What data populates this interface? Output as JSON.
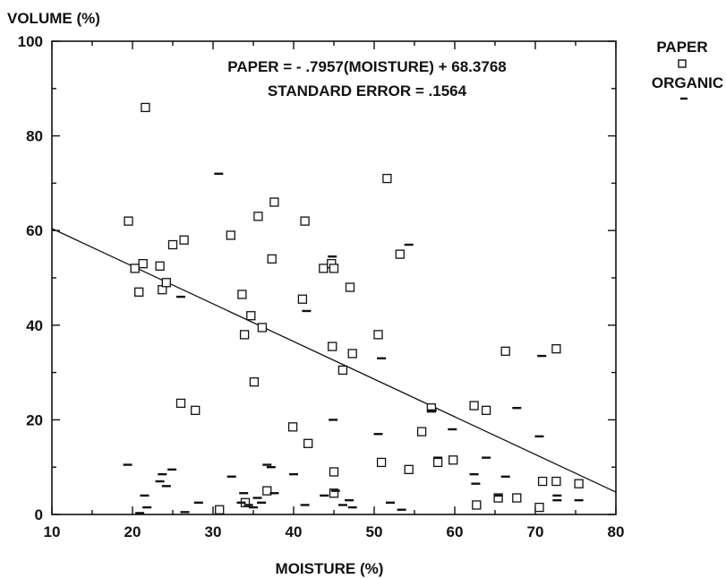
{
  "chart_data": {
    "type": "scatter",
    "ylabel": "VOLUME (%)",
    "xlabel": "MOISTURE (%)",
    "xlim": [
      10,
      80
    ],
    "ylim": [
      0,
      100
    ],
    "x_ticks": [
      "10",
      "20",
      "30",
      "40",
      "50",
      "60",
      "70",
      "80"
    ],
    "y_ticks": [
      "0",
      "20",
      "40",
      "60",
      "80",
      "100"
    ],
    "grid": false,
    "legend_placement": "right, outside plot",
    "annotations": [
      "PAPER = - .7957(MOISTURE) + 68.3768",
      "STANDARD ERROR = .1564"
    ],
    "regression_line": {
      "slope": -0.7957,
      "intercept": 68.3768
    },
    "series": [
      {
        "name": "PAPER",
        "marker": "square",
        "points": [
          [
            19.5,
            62
          ],
          [
            20.3,
            52
          ],
          [
            20.8,
            47
          ],
          [
            21.3,
            53
          ],
          [
            21.6,
            86
          ],
          [
            23.4,
            52.5
          ],
          [
            23.7,
            47.5
          ],
          [
            24.2,
            49
          ],
          [
            25.0,
            57
          ],
          [
            26.0,
            23.5
          ],
          [
            26.4,
            58
          ],
          [
            27.8,
            22
          ],
          [
            30.8,
            1
          ],
          [
            32.2,
            59
          ],
          [
            33.6,
            46.5
          ],
          [
            33.9,
            38
          ],
          [
            34.0,
            2.5
          ],
          [
            34.7,
            42
          ],
          [
            35.1,
            28
          ],
          [
            35.6,
            63
          ],
          [
            36.1,
            39.5
          ],
          [
            36.7,
            5
          ],
          [
            37.3,
            54
          ],
          [
            37.6,
            66
          ],
          [
            39.9,
            18.5
          ],
          [
            41.1,
            45.5
          ],
          [
            41.4,
            62
          ],
          [
            41.8,
            15
          ],
          [
            43.7,
            52
          ],
          [
            44.7,
            53
          ],
          [
            44.8,
            35.5
          ],
          [
            45.0,
            52
          ],
          [
            45.0,
            9
          ],
          [
            45.0,
            4.5
          ],
          [
            46.1,
            30.5
          ],
          [
            47.0,
            48
          ],
          [
            47.3,
            34
          ],
          [
            50.5,
            38
          ],
          [
            50.9,
            11
          ],
          [
            51.6,
            71
          ],
          [
            53.2,
            55
          ],
          [
            54.3,
            9.5
          ],
          [
            55.9,
            17.5
          ],
          [
            57.1,
            22.5
          ],
          [
            57.9,
            11
          ],
          [
            59.8,
            11.5
          ],
          [
            62.4,
            23
          ],
          [
            62.7,
            2
          ],
          [
            63.9,
            22
          ],
          [
            65.4,
            3.5
          ],
          [
            66.3,
            34.5
          ],
          [
            67.7,
            3.5
          ],
          [
            70.5,
            1.5
          ],
          [
            70.9,
            7
          ],
          [
            72.6,
            35
          ],
          [
            72.6,
            7
          ],
          [
            75.4,
            6.5
          ]
        ]
      },
      {
        "name": "ORGANIC",
        "marker": "dash",
        "points": [
          [
            19.4,
            10.5
          ],
          [
            20.9,
            0.3
          ],
          [
            21.5,
            4
          ],
          [
            21.8,
            1.5
          ],
          [
            23.4,
            7
          ],
          [
            23.7,
            8.5
          ],
          [
            24.2,
            6
          ],
          [
            24.9,
            9.5
          ],
          [
            26.0,
            46
          ],
          [
            26.5,
            0.5
          ],
          [
            28.2,
            2.5
          ],
          [
            30.7,
            72
          ],
          [
            32.3,
            8
          ],
          [
            33.5,
            2.5
          ],
          [
            33.8,
            4.5
          ],
          [
            34.4,
            2
          ],
          [
            35.0,
            1.5
          ],
          [
            35.5,
            3.5
          ],
          [
            36.0,
            2.5
          ],
          [
            36.7,
            10.5
          ],
          [
            37.2,
            10
          ],
          [
            37.6,
            4.5
          ],
          [
            40.0,
            8.5
          ],
          [
            41.4,
            2
          ],
          [
            41.6,
            43
          ],
          [
            43.8,
            4
          ],
          [
            44.8,
            54.5
          ],
          [
            44.9,
            20
          ],
          [
            45.2,
            5
          ],
          [
            46.1,
            2
          ],
          [
            46.9,
            3
          ],
          [
            47.3,
            1.5
          ],
          [
            50.5,
            17
          ],
          [
            50.9,
            33
          ],
          [
            52.0,
            2.5
          ],
          [
            53.4,
            1
          ],
          [
            54.3,
            57
          ],
          [
            57.2,
            22
          ],
          [
            57.9,
            12
          ],
          [
            59.7,
            18
          ],
          [
            62.4,
            8.5
          ],
          [
            62.6,
            6.5
          ],
          [
            63.9,
            12
          ],
          [
            65.4,
            4
          ],
          [
            66.3,
            8
          ],
          [
            67.7,
            22.5
          ],
          [
            70.5,
            16.5
          ],
          [
            70.8,
            33.5
          ],
          [
            72.7,
            4
          ],
          [
            72.7,
            3
          ],
          [
            75.4,
            3
          ]
        ]
      }
    ]
  },
  "legend": {
    "items": [
      {
        "label": "PAPER",
        "marker": "square"
      },
      {
        "label": "ORGANIC",
        "marker": "dash"
      }
    ]
  },
  "colors": {
    "ink": "#111111",
    "background": "#ffffff"
  }
}
